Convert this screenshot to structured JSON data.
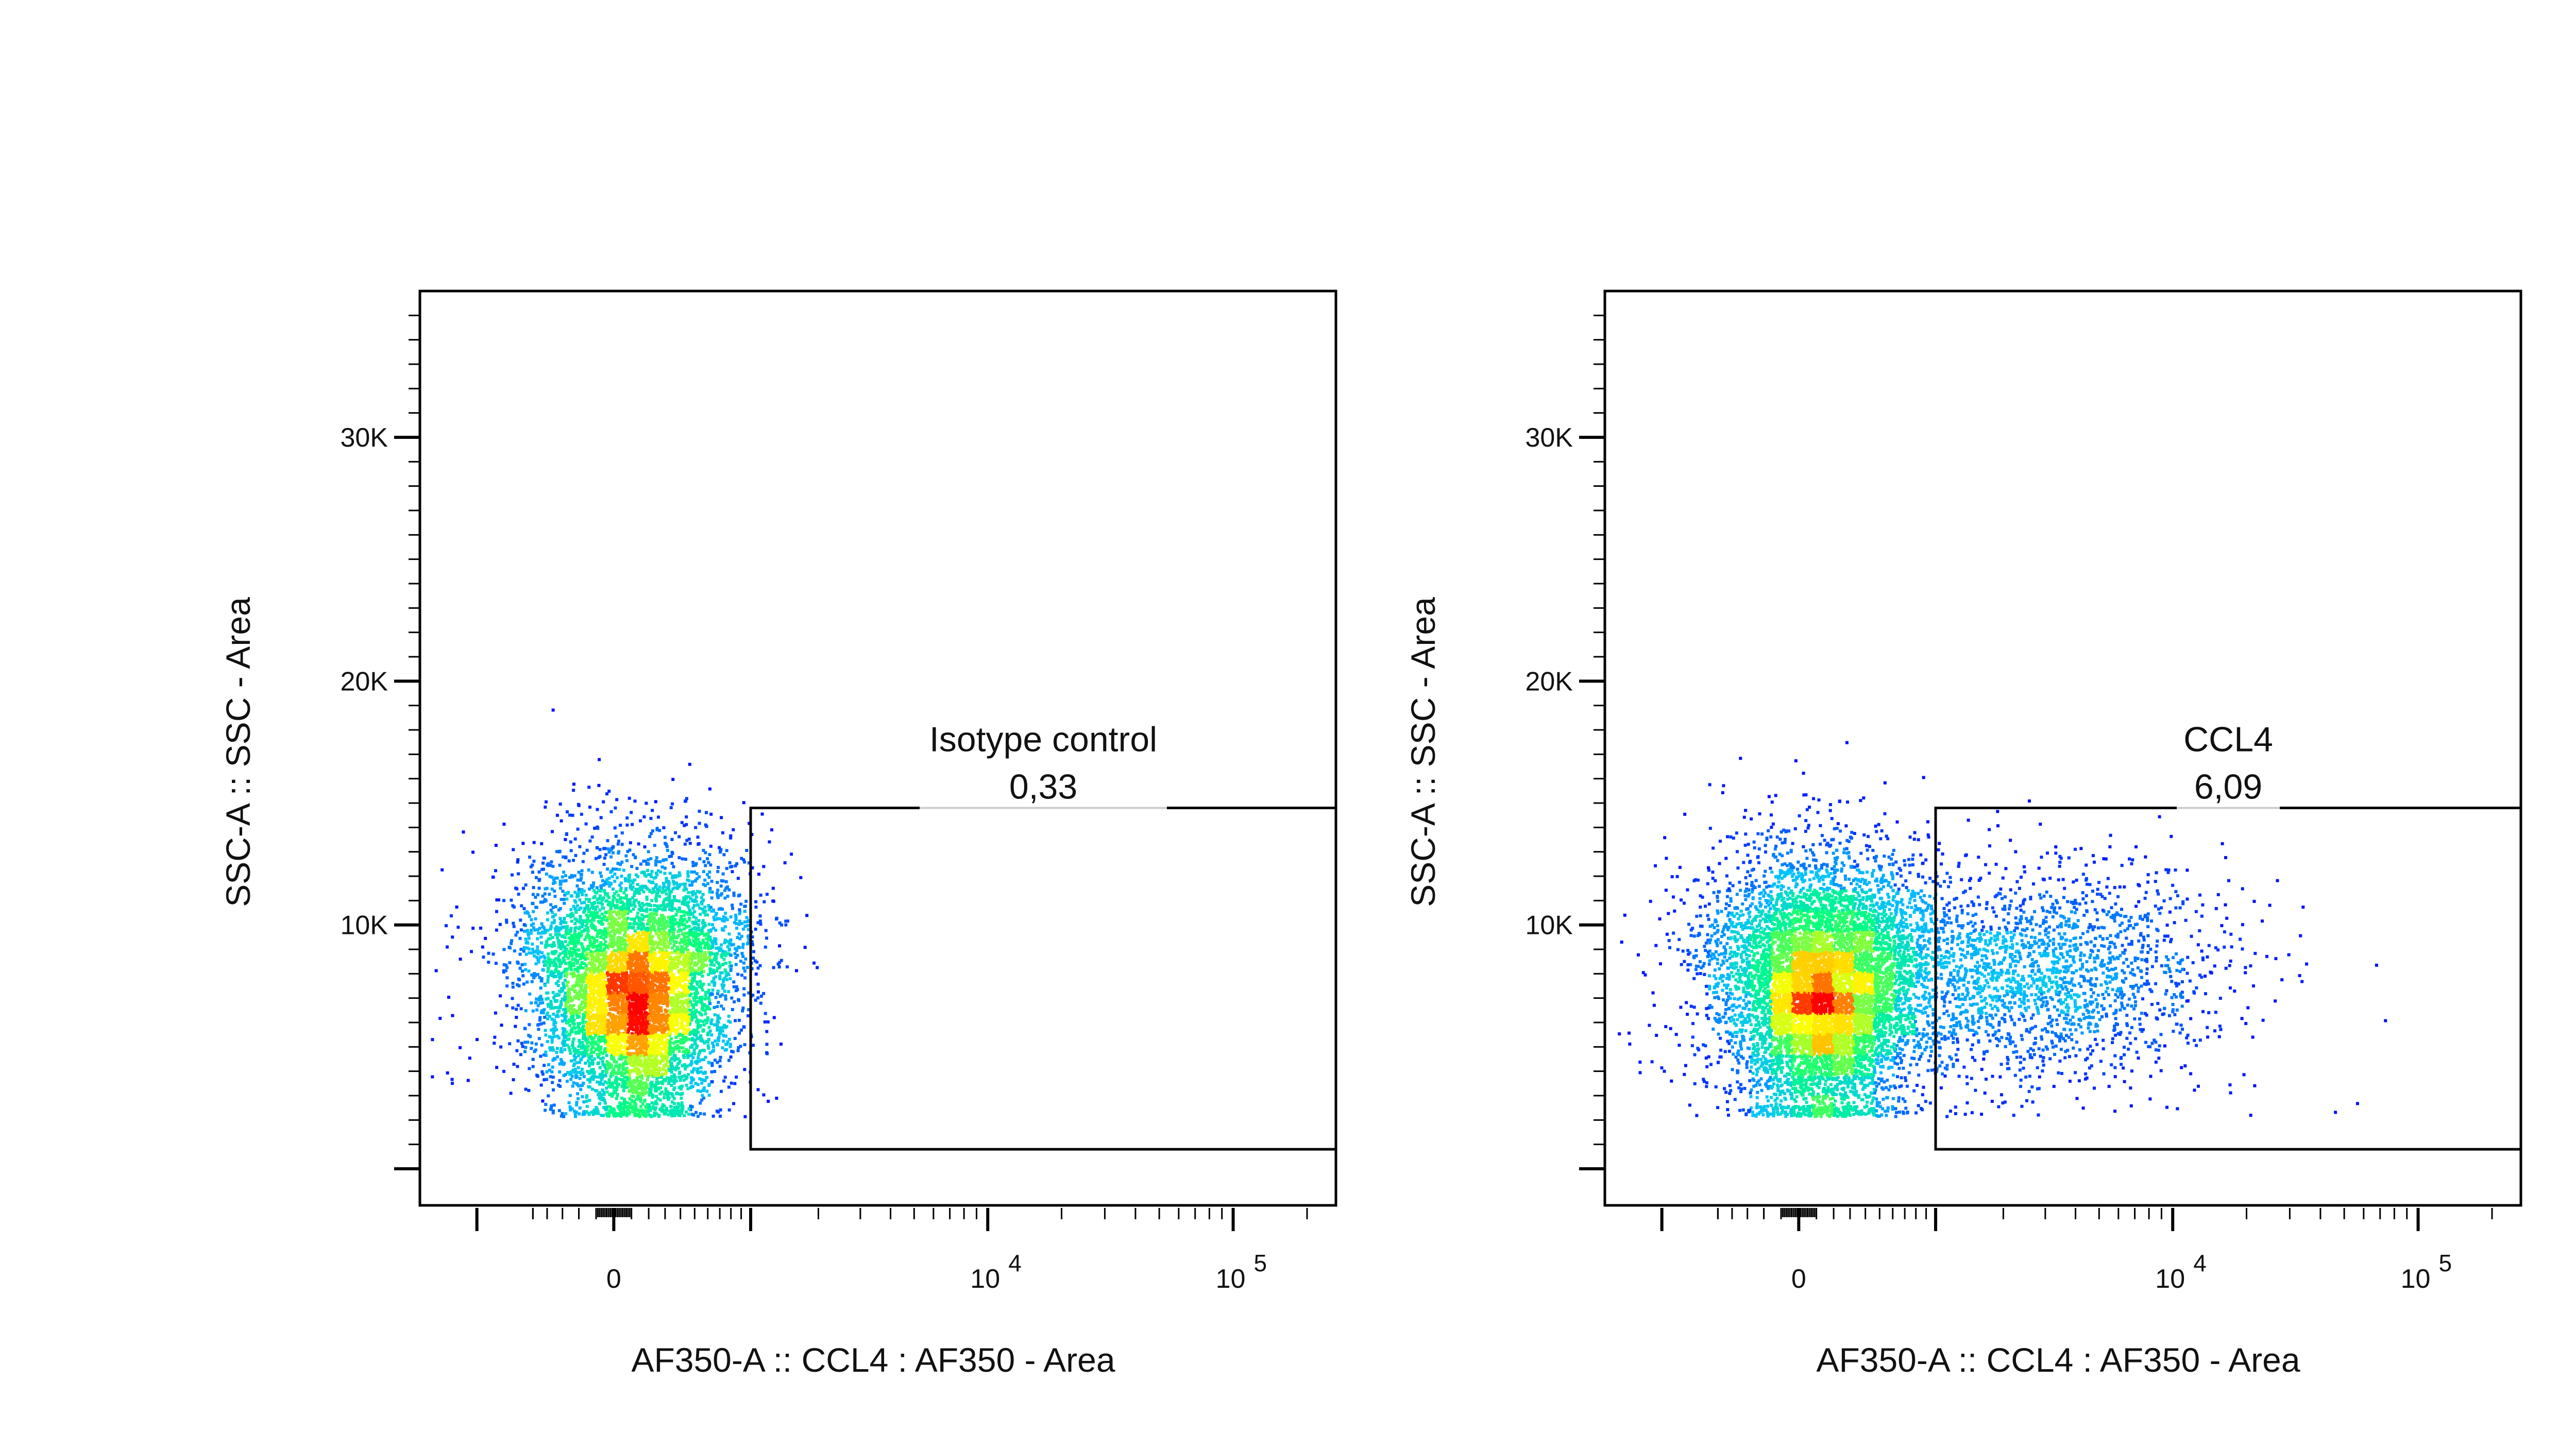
{
  "chart_data": [
    {
      "type": "scatter",
      "subtype": "flow-cytometry-density-dot-plot",
      "xlabel": "AF350-A :: CCL4 : AF350 - Area",
      "ylabel": "SSC-A :: SSC - Area",
      "x_scale": "biexponential",
      "y_scale": "linear",
      "ylim": [
        -1500,
        36000
      ],
      "y_ticks": [
        {
          "value": 10000,
          "label": "10K"
        },
        {
          "value": 20000,
          "label": "20K"
        },
        {
          "value": 30000,
          "label": "30K"
        }
      ],
      "x_ticks": [
        {
          "value": 0,
          "label": "0"
        },
        {
          "value": 10000,
          "base": "10",
          "exponent": "4"
        },
        {
          "value": 100000,
          "base": "10",
          "exponent": "5"
        }
      ],
      "gate": {
        "name": "Isotype control",
        "percent": "0,33",
        "x_range": [
          1000,
          262144
        ],
        "y_range": [
          800,
          14800
        ]
      },
      "populations": [
        {
          "name": "",
          "x_center": 120,
          "y_center": 7200,
          "count": 7000
        }
      ],
      "density_colors": [
        "#0000ff",
        "#00c0ff",
        "#00ff80",
        "#ffff00",
        "#ff0000"
      ]
    },
    {
      "type": "scatter",
      "subtype": "flow-cytometry-density-dot-plot",
      "xlabel": "AF350-A :: CCL4 : AF350 - Area",
      "ylabel": "SSC-A :: SSC - Area",
      "x_scale": "biexponential",
      "y_scale": "linear",
      "ylim": [
        -1500,
        36000
      ],
      "y_ticks": [
        {
          "value": 10000,
          "label": "10K"
        },
        {
          "value": 20000,
          "label": "20K"
        },
        {
          "value": 30000,
          "label": "30K"
        }
      ],
      "x_ticks": [
        {
          "value": 0,
          "label": "0"
        },
        {
          "value": 10000,
          "base": "10",
          "exponent": "4"
        },
        {
          "value": 100000,
          "base": "10",
          "exponent": "5"
        }
      ],
      "gate": {
        "name": "CCL4",
        "percent": "6,09",
        "x_range": [
          1000,
          262144
        ],
        "y_range": [
          800,
          14800
        ]
      },
      "populations": [
        {
          "name": "",
          "x_center": 120,
          "y_center": 7200,
          "count": 7500
        },
        {
          "name": "",
          "x_center": 2500,
          "y_center": 8000,
          "count": 2200
        }
      ],
      "density_colors": [
        "#0000ff",
        "#00c0ff",
        "#00ff80",
        "#ffff00",
        "#ff0000"
      ]
    }
  ]
}
